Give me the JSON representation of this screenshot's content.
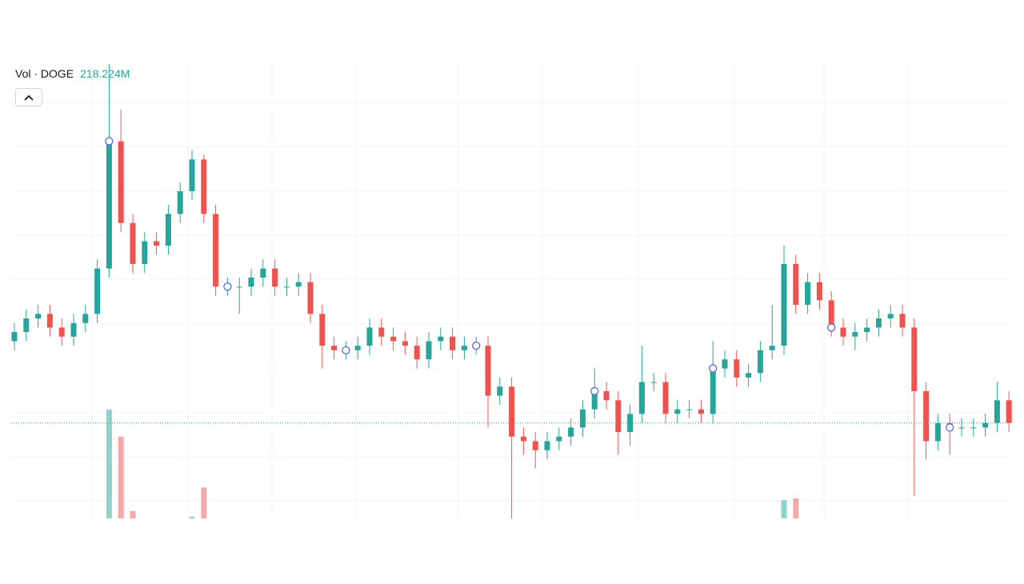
{
  "header": {
    "indicator": "Vol · DOGE",
    "value": "218.224M"
  },
  "chart_data": {
    "type": "candlestick",
    "ylim": [
      0,
      100
    ],
    "up_color": "#26a69a",
    "down_color": "#ef5350",
    "open": [
      39,
      41,
      44,
      45,
      42,
      40,
      43,
      45,
      55,
      83,
      65,
      56,
      61,
      60,
      67,
      72,
      79,
      67,
      51,
      51,
      51,
      53,
      55,
      51,
      51,
      52,
      45,
      38,
      37,
      37,
      38,
      42,
      40,
      39,
      38,
      35,
      39,
      40,
      37,
      38,
      38,
      27,
      29,
      18,
      17,
      15,
      17,
      18,
      20,
      24,
      28,
      26,
      19,
      23,
      30,
      30,
      23,
      24,
      24,
      23,
      33,
      35,
      31,
      32,
      37,
      38,
      56,
      47,
      52,
      48,
      42,
      40,
      41,
      42,
      44,
      45,
      42,
      28,
      17,
      21,
      20,
      20,
      20,
      21,
      26
    ],
    "high": [
      43,
      46,
      47,
      47,
      44,
      45,
      47,
      57,
      100,
      90,
      67,
      63,
      63,
      69,
      74,
      81,
      80,
      69,
      53,
      53,
      55,
      57,
      57,
      53,
      54,
      54,
      47,
      40,
      39,
      40,
      44,
      44,
      42,
      41,
      40,
      41,
      42,
      42,
      40,
      40,
      40,
      31,
      31,
      20,
      19,
      19,
      20,
      22,
      26,
      33,
      30,
      28,
      25,
      38,
      32,
      32,
      26,
      26,
      26,
      39,
      37,
      37,
      34,
      39,
      47,
      60,
      58,
      54,
      54,
      50,
      44,
      43,
      44,
      46,
      47,
      47,
      44,
      30,
      23,
      23,
      22,
      22,
      23,
      30,
      28
    ],
    "low": [
      37,
      39,
      42,
      40,
      38,
      38,
      41,
      43,
      53,
      63,
      54,
      54,
      58,
      58,
      65,
      70,
      65,
      49,
      49,
      45,
      49,
      51,
      49,
      49,
      49,
      43,
      33,
      35,
      35,
      35,
      36,
      38,
      37,
      36,
      33,
      33,
      37,
      35,
      35,
      36,
      20,
      25,
      0,
      14,
      11,
      13,
      15,
      16,
      18,
      22,
      24,
      14,
      16,
      21,
      28,
      21,
      21,
      22,
      21,
      21,
      31,
      29,
      29,
      30,
      35,
      36,
      45,
      45,
      46,
      40,
      38,
      37,
      39,
      40,
      42,
      40,
      5,
      13,
      15,
      14,
      18,
      18,
      18,
      19,
      19
    ],
    "close": [
      41,
      44,
      45,
      42,
      40,
      43,
      45,
      55,
      83,
      65,
      56,
      61,
      60,
      67,
      72,
      79,
      67,
      51,
      51,
      51,
      53,
      55,
      51,
      51,
      52,
      45,
      38,
      37,
      37,
      38,
      42,
      40,
      39,
      38,
      35,
      39,
      40,
      37,
      38,
      38,
      27,
      29,
      18,
      17,
      15,
      17,
      18,
      20,
      24,
      28,
      26,
      19,
      23,
      30,
      30,
      23,
      24,
      24,
      23,
      33,
      35,
      31,
      32,
      37,
      38,
      56,
      47,
      52,
      48,
      42,
      40,
      41,
      42,
      44,
      45,
      42,
      28,
      17,
      21,
      20,
      20,
      20,
      21,
      26,
      21
    ],
    "volume_ylim": [
      0,
      500
    ],
    "volume": [
      null,
      null,
      null,
      null,
      null,
      null,
      null,
      null,
      120,
      90,
      8,
      null,
      null,
      null,
      null,
      2,
      34,
      null,
      null,
      null,
      null,
      null,
      null,
      null,
      null,
      null,
      null,
      null,
      null,
      null,
      null,
      null,
      null,
      null,
      null,
      null,
      null,
      null,
      null,
      null,
      null,
      null,
      null,
      null,
      null,
      null,
      null,
      null,
      null,
      null,
      null,
      null,
      null,
      null,
      null,
      null,
      null,
      null,
      null,
      null,
      null,
      null,
      null,
      null,
      null,
      20,
      22,
      null,
      null,
      null,
      null,
      null,
      null,
      null,
      null,
      null,
      null,
      null,
      null,
      null,
      null,
      null,
      null,
      null,
      null
    ],
    "event_markers": [
      8,
      18,
      28,
      39,
      49,
      59,
      69,
      79
    ]
  }
}
